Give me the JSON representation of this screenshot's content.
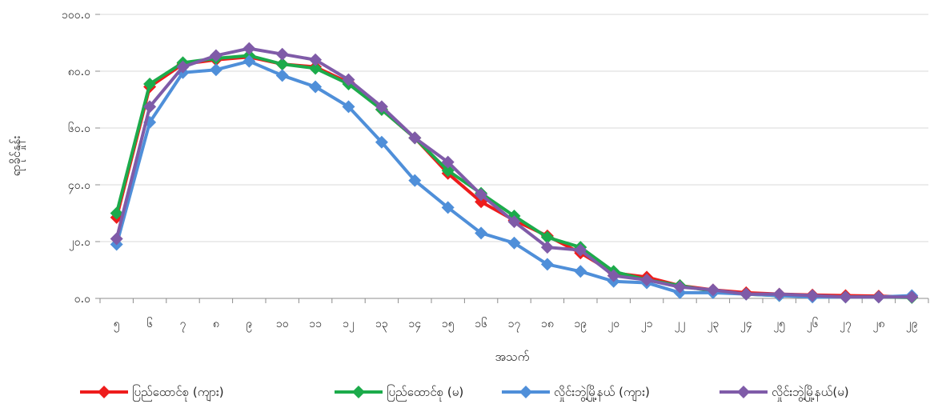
{
  "chart_data": {
    "type": "line",
    "title": "",
    "xlabel": "အသက်",
    "ylabel": "ရာခိုင်နှုန်း",
    "ylim": [
      0,
      100
    ],
    "yticks": [
      "၀.၀",
      "၂၀.၀",
      "၄၀.၀",
      "၆၀.၀",
      "၈၀.၀",
      "၁၀၀.၀"
    ],
    "categories": [
      "၅",
      "၆",
      "၇",
      "၈",
      "၉",
      "၁၀",
      "၁၁",
      "၁၂",
      "၁၃",
      "၁၄",
      "၁၅",
      "၁၆",
      "၁၇",
      "၁၈",
      "၁၉",
      "၂၀",
      "၂၁",
      "၂၂",
      "၂၃",
      "၂၄",
      "၂၅",
      "၂၆",
      "၂၇",
      "၂၈",
      "၂၉"
    ],
    "grid": true,
    "legend_position": "bottom",
    "series": [
      {
        "name": "ပြည်ထောင်စု (ကျား)",
        "color": "#ee1c1c",
        "values": [
          28.5,
          74.5,
          82.5,
          84,
          85,
          82.5,
          81.5,
          76,
          66.5,
          56.5,
          44,
          34,
          27.5,
          22,
          16,
          9,
          7.5,
          4.5,
          3,
          2,
          1.5,
          1.2,
          1,
          0.8,
          0.5
        ]
      },
      {
        "name": "ပြည်ထောင်စု (မ)",
        "color": "#1cab4b",
        "values": [
          30,
          75.5,
          83,
          84.5,
          85.5,
          82.5,
          81,
          75.5,
          66.5,
          56.5,
          45,
          37,
          29,
          21.5,
          18,
          9.5,
          6.5,
          4.5,
          2.5,
          1.5,
          1,
          0.8,
          0.5,
          0.5,
          0.3
        ]
      },
      {
        "name": "လှိုင်းဘွဲ့မြို့နယ် (ကျား)",
        "color": "#4f8fd9",
        "values": [
          19,
          62,
          79.5,
          80.5,
          83.5,
          78.5,
          74.5,
          67.5,
          55,
          41.5,
          32,
          23,
          19.5,
          12,
          9.5,
          6,
          5.5,
          2,
          2,
          1.5,
          1,
          0.5,
          0.5,
          0.5,
          1
        ]
      },
      {
        "name": "လှိုင်းဘွဲ့မြို့နယ်(မ)",
        "color": "#7f5ba8",
        "values": [
          21,
          67.5,
          81.5,
          85.5,
          88,
          86,
          84,
          77,
          67.5,
          56.5,
          48,
          36.5,
          27,
          18,
          17,
          8,
          6.5,
          4,
          3,
          1.5,
          1.5,
          1,
          0.5,
          0.5,
          0.5
        ]
      }
    ]
  }
}
